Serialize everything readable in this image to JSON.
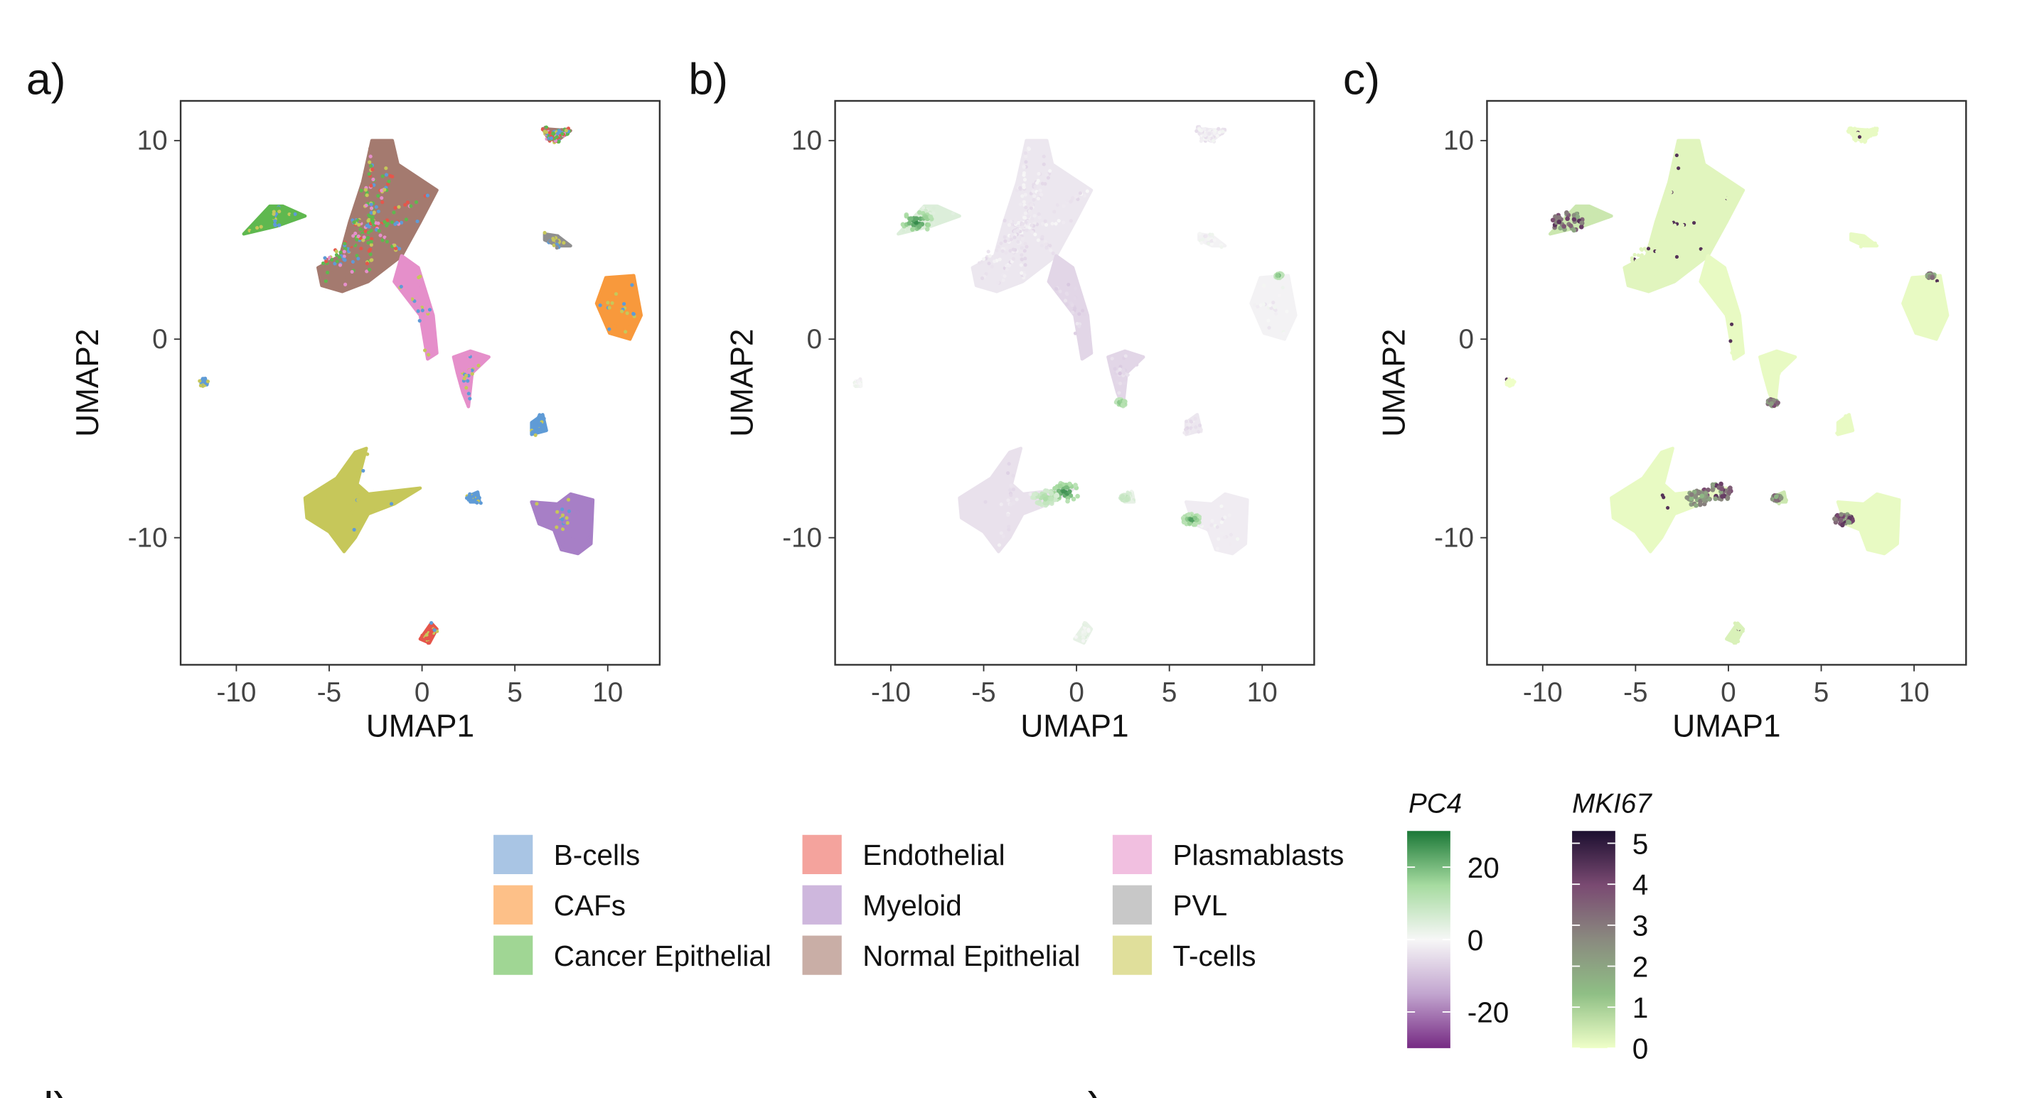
{
  "chart_data": [
    {
      "panel": "a)",
      "type": "scatter",
      "xlabel": "UMAP1",
      "ylabel": "UMAP2",
      "xlim": [
        -13,
        12.8
      ],
      "ylim": [
        -16.4,
        12
      ],
      "xticks": [
        "-10",
        "-5",
        "0",
        "5",
        "10"
      ],
      "yticks": [
        "10",
        "0",
        "-10"
      ],
      "color_by": "cell type",
      "grid": false
    },
    {
      "panel": "b)",
      "type": "scatter",
      "xlabel": "UMAP1",
      "ylabel": "UMAP2",
      "xlim": [
        -13,
        12.8
      ],
      "ylim": [
        -16.4,
        12
      ],
      "xticks": [
        "-10",
        "-5",
        "0",
        "5",
        "10"
      ],
      "yticks": [
        "10",
        "0",
        "-10"
      ],
      "color_by": "PC4",
      "grid": false
    },
    {
      "panel": "c)",
      "type": "scatter",
      "xlabel": "UMAP1",
      "ylabel": "UMAP2",
      "xlim": [
        -13,
        12.8
      ],
      "ylim": [
        -16.4,
        12
      ],
      "xticks": [
        "-10",
        "-5",
        "0",
        "5",
        "10"
      ],
      "yticks": [
        "10",
        "0",
        "-10"
      ],
      "color_by": "MKI67",
      "grid": false
    }
  ],
  "clusters": [
    {
      "type": "Normal Epithelial",
      "mixed": true,
      "pc4": -3,
      "mki67": 0.2,
      "poly": [
        [
          -2.7,
          10.0
        ],
        [
          -1.6,
          10.0
        ],
        [
          -1.3,
          8.8
        ],
        [
          0.8,
          7.5
        ],
        [
          -0.1,
          5.9
        ],
        [
          -1.1,
          4.2
        ],
        [
          -2.9,
          2.9
        ],
        [
          -4.3,
          2.4
        ],
        [
          -5.4,
          2.7
        ],
        [
          -5.6,
          3.6
        ],
        [
          -4.4,
          4.2
        ],
        [
          -3.9,
          5.9
        ],
        [
          -3.2,
          7.9
        ]
      ]
    },
    {
      "type": "Cancer Epithelial",
      "pc4": 5,
      "mki67": 0.5,
      "poly": [
        [
          -9.6,
          5.3
        ],
        [
          -8.2,
          6.7
        ],
        [
          -7.5,
          6.7
        ],
        [
          -6.3,
          6.2
        ],
        [
          -7.8,
          5.7
        ]
      ]
    },
    {
      "type": "Plasmablasts",
      "pc4": -6,
      "mki67": 0.1,
      "poly": [
        [
          -1.1,
          4.2
        ],
        [
          -0.2,
          3.6
        ],
        [
          0.6,
          1.2
        ],
        [
          0.8,
          -0.7
        ],
        [
          0.3,
          -1.0
        ],
        [
          -0.1,
          1.2
        ],
        [
          -1.5,
          2.9
        ]
      ]
    },
    {
      "type": "Plasmablasts",
      "pc4": -6,
      "mki67": 0.1,
      "poly": [
        [
          1.7,
          -0.9
        ],
        [
          2.6,
          -0.6
        ],
        [
          3.6,
          -0.9
        ],
        [
          2.7,
          -1.7
        ],
        [
          2.5,
          -3.4
        ],
        [
          2.2,
          -2.7
        ],
        [
          1.9,
          -1.7
        ]
      ]
    },
    {
      "type": "CAFs",
      "pc4": -1,
      "mki67": 0.1,
      "poly": [
        [
          9.4,
          1.8
        ],
        [
          9.9,
          3.1
        ],
        [
          11.4,
          3.2
        ],
        [
          11.8,
          1.2
        ],
        [
          11.2,
          0
        ],
        [
          10.1,
          0.3
        ]
      ]
    },
    {
      "type": "T-cells",
      "pc4": -4,
      "mki67": 0.1,
      "poly": [
        [
          -6.3,
          -8.0
        ],
        [
          -4.6,
          -7.0
        ],
        [
          -3.6,
          -5.7
        ],
        [
          -3.0,
          -5.5
        ],
        [
          -3.5,
          -7.3
        ],
        [
          -2.9,
          -7.8
        ],
        [
          -0.1,
          -7.5
        ],
        [
          -1.5,
          -8.3
        ],
        [
          -2.9,
          -8.8
        ],
        [
          -3.6,
          -10.0
        ],
        [
          -4.2,
          -10.7
        ],
        [
          -5.0,
          -9.7
        ],
        [
          -6.2,
          -9.0
        ]
      ]
    },
    {
      "type": "Myeloid",
      "pc4": -2,
      "mki67": 0.1,
      "poly": [
        [
          5.9,
          -8.2
        ],
        [
          7.3,
          -8.3
        ],
        [
          8.0,
          -7.8
        ],
        [
          9.2,
          -8.1
        ],
        [
          9.1,
          -10.3
        ],
        [
          8.4,
          -10.8
        ],
        [
          7.5,
          -10.6
        ],
        [
          7.1,
          -9.6
        ],
        [
          6.3,
          -9.3
        ]
      ]
    },
    {
      "type": "Endothelial",
      "pc4": 3,
      "mki67": 0.3,
      "poly": [
        [
          -0.1,
          -15.1
        ],
        [
          0.5,
          -14.3
        ],
        [
          0.8,
          -14.6
        ],
        [
          0.4,
          -15.3
        ]
      ]
    },
    {
      "type": "Normal Epithelial",
      "mixed": true,
      "pc4": -2,
      "mki67": 0.1,
      "poly": [
        [
          6.5,
          10.6
        ],
        [
          8.0,
          10.5
        ],
        [
          7.3,
          10.0
        ],
        [
          6.8,
          10.1
        ]
      ]
    },
    {
      "type": "PVL",
      "pc4": -1,
      "mki67": 0.1,
      "poly": [
        [
          6.6,
          5.3
        ],
        [
          7.3,
          5.2
        ],
        [
          8.0,
          4.7
        ],
        [
          7.3,
          4.7
        ],
        [
          6.6,
          5.0
        ]
      ]
    },
    {
      "type": "B-cells",
      "pc4": -3,
      "mki67": 0.1,
      "poly": [
        [
          5.9,
          -4.2
        ],
        [
          6.5,
          -3.8
        ],
        [
          6.7,
          -4.6
        ],
        [
          5.9,
          -4.8
        ]
      ]
    },
    {
      "type": "B-cells",
      "pc4": 3,
      "mki67": 0.5,
      "poly": [
        [
          2.5,
          -7.9
        ],
        [
          3.0,
          -7.7
        ],
        [
          3.1,
          -8.2
        ],
        [
          2.6,
          -8.2
        ]
      ]
    },
    {
      "type": "B-cells",
      "pc4": 0,
      "mki67": 0,
      "poly": [
        [
          -11.9,
          -2.1
        ],
        [
          -11.6,
          -2.1
        ],
        [
          -11.6,
          -2.3
        ],
        [
          -11.9,
          -2.3
        ]
      ]
    }
  ],
  "highlights": [
    {
      "x": -8.6,
      "y": 5.9,
      "r": 0.9,
      "pc4": 28,
      "mki67": 4.5
    },
    {
      "x": -0.6,
      "y": -7.7,
      "r": 0.8,
      "pc4": 28,
      "mki67": 4.5
    },
    {
      "x": -1.7,
      "y": -8.0,
      "r": 0.7,
      "pc4": 15,
      "mki67": 3
    },
    {
      "x": 6.2,
      "y": -9.1,
      "r": 0.5,
      "pc4": 25,
      "mki67": 4.5
    },
    {
      "x": 2.4,
      "y": -3.2,
      "r": 0.3,
      "pc4": 22,
      "mki67": 4
    },
    {
      "x": 10.9,
      "y": 3.2,
      "r": 0.2,
      "pc4": 22,
      "mki67": 3.5
    },
    {
      "x": 2.6,
      "y": -8.0,
      "r": 0.25,
      "pc4": 15,
      "mki67": 3.5
    }
  ],
  "legend": {
    "items": [
      {
        "label": "B-cells",
        "color": "#a9c5e4",
        "point": "#5f9bd6"
      },
      {
        "label": "CAFs",
        "color": "#fdc088",
        "point": "#f8993c"
      },
      {
        "label": "Cancer Epithelial",
        "color": "#a0d694",
        "point": "#5fb84f"
      },
      {
        "label": "Endothelial",
        "color": "#f4a39d",
        "point": "#e5564b"
      },
      {
        "label": "Myeloid",
        "color": "#ceb7dd",
        "point": "#a77fc6"
      },
      {
        "label": "Normal Epithelial",
        "color": "#c9aea6",
        "point": "#a47a6f"
      },
      {
        "label": "Plasmablasts",
        "color": "#f1bfe0",
        "point": "#e58fca"
      },
      {
        "label": "PVL",
        "color": "#c8c8c8",
        "point": "#8f8f8f"
      },
      {
        "label": "T-cells",
        "color": "#e0df9b",
        "point": "#c6c75a"
      }
    ]
  },
  "colorbars": {
    "pc4": {
      "title": "PC4",
      "ticks": [
        "20",
        "0",
        "-20"
      ],
      "tick_values": [
        20,
        0,
        -20
      ],
      "range": [
        -30,
        30
      ],
      "colors": [
        "#762a83",
        "#c2a5cf",
        "#f7f7f7",
        "#a6dba0",
        "#1b7837"
      ]
    },
    "mki67": {
      "title": "MKI67",
      "ticks": [
        "5",
        "4",
        "3",
        "2",
        "1",
        "0"
      ],
      "tick_values": [
        5,
        4,
        3,
        2,
        1,
        0
      ],
      "range": [
        0,
        5.3
      ],
      "colors": [
        "#efffc8",
        "#8fbf85",
        "#8a8a7f",
        "#7a4a72",
        "#1c0f30"
      ]
    }
  },
  "panel_labels": [
    "a)",
    "b)",
    "c)",
    "d)",
    "e)"
  ]
}
